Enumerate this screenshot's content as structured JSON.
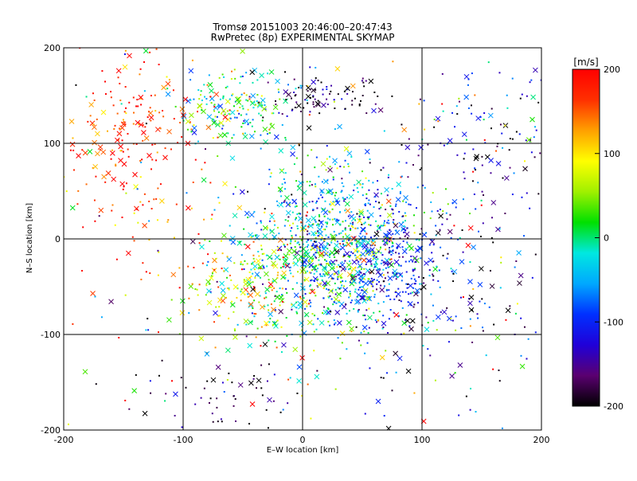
{
  "chart_data": {
    "type": "scatter",
    "title": "Tromsø 20151003 20:46:00–20:47:43",
    "subtitle": "RwPretec (8p) EXPERIMENTAL SKYMAP",
    "xlabel": "E–W location [km]",
    "ylabel": "N–S location [km]",
    "xlim": [
      -200,
      200
    ],
    "ylim": [
      -200,
      200
    ],
    "xticks": [
      -200,
      -100,
      0,
      100,
      200
    ],
    "yticks": [
      -200,
      -100,
      0,
      100,
      200
    ],
    "x_tick_labels": [
      "-200",
      "-100",
      "0",
      "100",
      "200"
    ],
    "y_tick_labels": [
      "-200",
      "-100",
      "0",
      "100",
      "200"
    ],
    "grid": true,
    "marker_types": [
      "dot",
      "x"
    ],
    "colorbar": {
      "label": "[m/s]",
      "min": -200,
      "max": 200,
      "ticks": [
        200,
        100,
        0,
        -100,
        -200
      ],
      "tick_labels": [
        "200",
        "100",
        "0",
        "-100",
        "-200"
      ],
      "colormap": [
        "#000000",
        "#5a0070",
        "#2000d8",
        "#0030ff",
        "#00a8ff",
        "#00e8e0",
        "#00e000",
        "#a0f000",
        "#ffff00",
        "#ffa000",
        "#ff3000",
        "#ff0000"
      ],
      "placement": "right"
    },
    "clusters": [
      {
        "x": 30,
        "y": -10,
        "sx": 35,
        "sy": 45,
        "count": 900,
        "v_mean": -30,
        "v_spread": 70
      },
      {
        "x": -30,
        "y": -40,
        "sx": 35,
        "sy": 30,
        "count": 300,
        "v_mean": 60,
        "v_spread": 70
      },
      {
        "x": 70,
        "y": -30,
        "sx": 30,
        "sy": 35,
        "count": 250,
        "v_mean": -110,
        "v_spread": 40
      },
      {
        "x": -60,
        "y": 140,
        "sx": 30,
        "sy": 20,
        "count": 180,
        "v_mean": 0,
        "v_spread": 60
      },
      {
        "x": 20,
        "y": 150,
        "sx": 25,
        "sy": 15,
        "count": 90,
        "v_mean": -180,
        "v_spread": 40
      },
      {
        "x": -150,
        "y": 110,
        "sx": 30,
        "sy": 40,
        "count": 150,
        "v_mean": 170,
        "v_spread": 40
      },
      {
        "x": -130,
        "y": 60,
        "sx": 40,
        "sy": 70,
        "count": 80,
        "v_mean": 160,
        "v_spread": 50
      },
      {
        "x": -60,
        "y": -160,
        "sx": 30,
        "sy": 20,
        "count": 60,
        "v_mean": -180,
        "v_spread": 40
      },
      {
        "x": 150,
        "y": 100,
        "sx": 40,
        "sy": 40,
        "count": 120,
        "v_mean": -120,
        "v_spread": 70
      },
      {
        "x": 140,
        "y": -60,
        "sx": 40,
        "sy": 60,
        "count": 100,
        "v_mean": -150,
        "v_spread": 60
      },
      {
        "x": 0,
        "y": 0,
        "sx": 200,
        "sy": 200,
        "count": 400,
        "v_mean": 0,
        "v_spread": 150
      }
    ]
  }
}
